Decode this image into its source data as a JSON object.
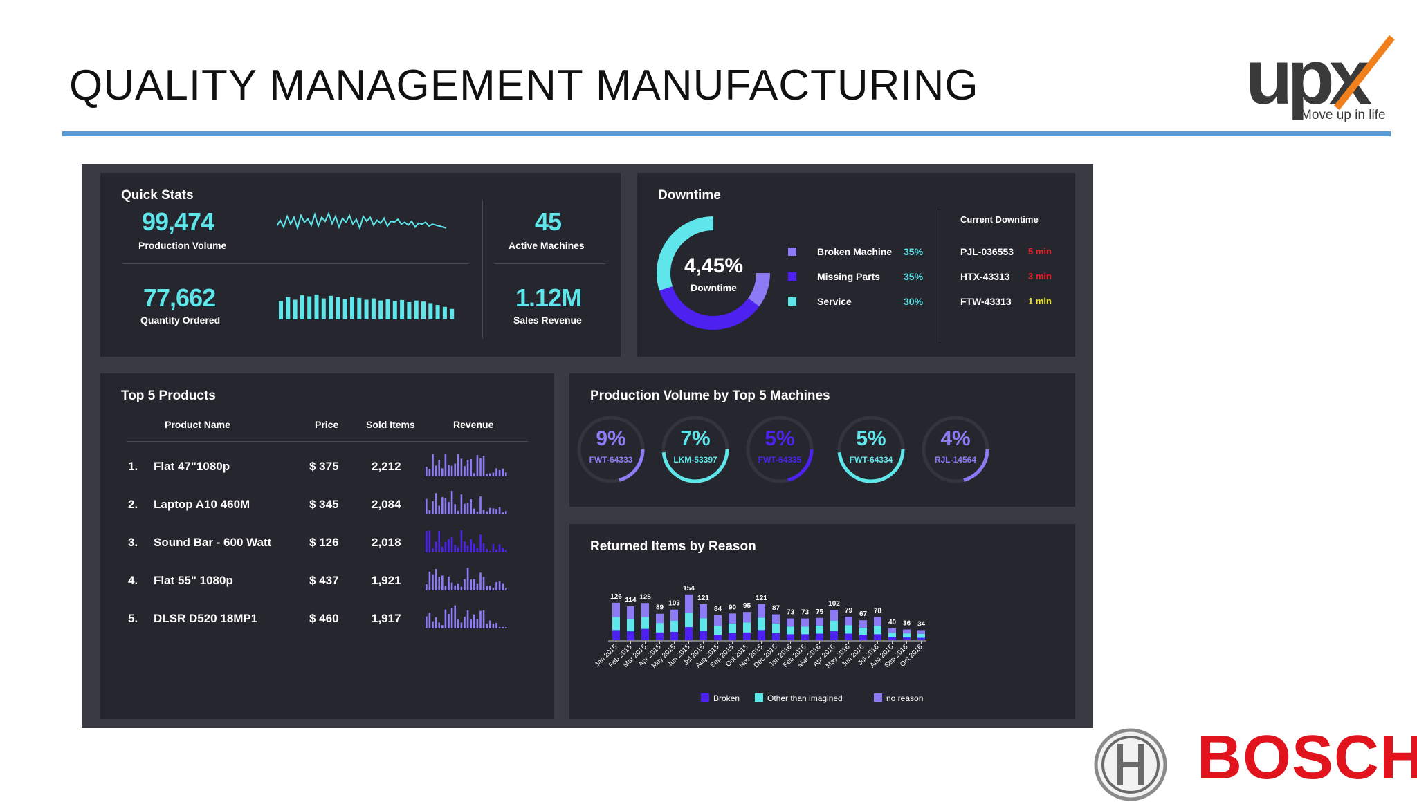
{
  "slide": {
    "title": "QUALITY MANAGEMENT MANUFACTURING"
  },
  "brand": {
    "upx_name": "upx",
    "upx_tagline": "Move up in life",
    "bosch_name": "BOSCH",
    "accent": "#5b9bd5"
  },
  "quick_stats": {
    "title": "Quick Stats",
    "production_volume": {
      "value": "99,474",
      "label": "Production Volume"
    },
    "quantity_ordered": {
      "value": "77,662",
      "label": "Quantity Ordered"
    },
    "active_machines": {
      "value": "45",
      "label": "Active Machines"
    },
    "sales_revenue": {
      "value": "1.12M",
      "label": "Sales Revenue"
    }
  },
  "downtime": {
    "title": "Downtime",
    "center_value": "4,45%",
    "center_label": "Downtime",
    "legend": [
      {
        "label": "Broken Machine",
        "value": "35%",
        "color": "#8b7cf6"
      },
      {
        "label": "Missing Parts",
        "value": "35%",
        "color": "#4d22f0"
      },
      {
        "label": "Service",
        "value": "30%",
        "color": "#5ee6ea"
      }
    ],
    "current_title": "Current Downtime",
    "current": [
      {
        "id": "PJL-036553",
        "time": "5 min",
        "color": "#e8202a"
      },
      {
        "id": "HTX-43313",
        "time": "3 min",
        "color": "#e8202a"
      },
      {
        "id": "FTW-43313",
        "time": "1 min",
        "color": "#f1e12a"
      }
    ]
  },
  "top_products": {
    "title": "Top 5 Products",
    "headers": {
      "name": "Product Name",
      "price": "Price",
      "sold": "Sold Items",
      "revenue": "Revenue"
    },
    "rows": [
      {
        "rank": "1.",
        "name": "Flat 47\"1080p",
        "price": "$ 375",
        "sold": "2,212"
      },
      {
        "rank": "2.",
        "name": "Laptop A10 460M",
        "price": "$ 345",
        "sold": "2,084"
      },
      {
        "rank": "3.",
        "name": "Sound Bar - 600 Watt",
        "price": "$ 126",
        "sold": "2,018"
      },
      {
        "rank": "4.",
        "name": "Flat 55\" 1080p",
        "price": "$ 437",
        "sold": "1,921"
      },
      {
        "rank": "5.",
        "name": "DLSR D520 18MP1",
        "price": "$ 460",
        "sold": "1,917"
      }
    ]
  },
  "machines": {
    "title": "Production Volume by Top 5 Machines",
    "items": [
      {
        "value": "9%",
        "name": "FWT-64333",
        "color": "#8b7cf6"
      },
      {
        "value": "7%",
        "name": "LKM-53397",
        "color": "#5ee6ea"
      },
      {
        "value": "5%",
        "name": "FWT-64335",
        "color": "#4d22f0"
      },
      {
        "value": "5%",
        "name": "FWT-64334",
        "color": "#5ee6ea"
      },
      {
        "value": "4%",
        "name": "RJL-14564",
        "color": "#8b7cf6"
      }
    ]
  },
  "returns": {
    "title": "Returned Items by Reason"
  },
  "chart_data": [
    {
      "type": "bar",
      "title": "Returned Items by Reason",
      "stacked": true,
      "categories": [
        "Jan 2015",
        "Feb 2015",
        "Mar 2015",
        "Apr 2015",
        "May 2015",
        "Jun 2015",
        "Jul 2015",
        "Aug 2015",
        "Sep 2015",
        "Oct 2015",
        "Nov 2015",
        "Dec 2015",
        "Jan 2016",
        "Feb 2016",
        "Mar 2016",
        "Apr 2016",
        "May 2016",
        "Jun 2016",
        "Jul 2016",
        "Aug 2016",
        "Sep 2016",
        "Oct 2016"
      ],
      "totals": [
        126,
        114,
        125,
        89,
        103,
        154,
        121,
        84,
        90,
        95,
        121,
        87,
        73,
        73,
        75,
        102,
        79,
        67,
        78,
        40,
        36,
        34
      ],
      "series": [
        {
          "name": "Broken",
          "color": "#4d22f0",
          "values": [
            34,
            30,
            38,
            26,
            28,
            44,
            32,
            18,
            24,
            26,
            34,
            24,
            20,
            20,
            22,
            30,
            22,
            18,
            20,
            10,
            9,
            8
          ]
        },
        {
          "name": "Other than imagined",
          "color": "#5ee6ea",
          "values": [
            44,
            40,
            40,
            32,
            38,
            48,
            42,
            30,
            32,
            34,
            42,
            32,
            26,
            26,
            27,
            36,
            28,
            24,
            28,
            15,
            14,
            13
          ]
        },
        {
          "name": "no reason",
          "color": "#8b7cf6",
          "values": [
            48,
            44,
            47,
            31,
            37,
            62,
            47,
            36,
            34,
            35,
            45,
            31,
            27,
            27,
            26,
            36,
            29,
            25,
            30,
            15,
            13,
            13
          ]
        }
      ],
      "legend_position": "bottom"
    },
    {
      "type": "line",
      "title": "",
      "series": [
        {
          "values": [
            40,
            52,
            38,
            60,
            44,
            58,
            36,
            62,
            48,
            55,
            42,
            64,
            40,
            58,
            50,
            66,
            45,
            60,
            38,
            56,
            48,
            62,
            44,
            54,
            36,
            60,
            50,
            58,
            42,
            52,
            46,
            56,
            40,
            50,
            48,
            54,
            44,
            48,
            42,
            50,
            38,
            46,
            44,
            48,
            40,
            44,
            42,
            40,
            38,
            36
          ]
        }
      ]
    },
    {
      "type": "bar",
      "title": "",
      "values": [
        70,
        85,
        75,
        92,
        88,
        95,
        80,
        90,
        85,
        78,
        86,
        82,
        75,
        80,
        72,
        78,
        70,
        74,
        66,
        72,
        68,
        62,
        55,
        48,
        40
      ]
    }
  ]
}
